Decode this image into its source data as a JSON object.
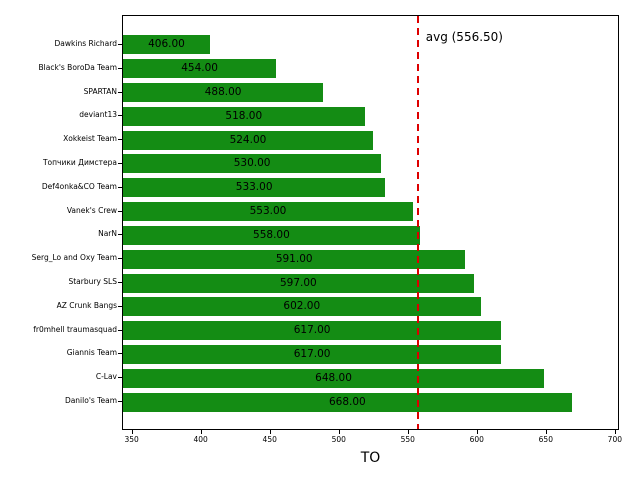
{
  "chart_data": {
    "type": "bar",
    "orientation": "horizontal",
    "title": "",
    "xlabel": "TO",
    "ylabel": "",
    "categories": [
      "Dawkins Richard",
      "Black's BoroDa Team",
      "SPARTAN",
      "deviant13",
      "Xokkeist Team",
      "Топчики Димстера",
      "Def4onka&CO Team",
      "Vanek's Crew",
      "NarN",
      "Serg_Lo and Oxy Team",
      "Starbury SLS",
      "AZ Crunk Bangs",
      "fr0mhell traumasquad",
      "Giannis Team",
      "C-Lav",
      "Danilo's Team"
    ],
    "values": [
      406,
      454,
      488,
      518,
      524,
      530,
      533,
      553,
      558,
      591,
      597,
      602,
      617,
      617,
      648,
      668
    ],
    "value_labels": [
      "406.00",
      "454.00",
      "488.00",
      "518.00",
      "524.00",
      "530.00",
      "533.00",
      "553.00",
      "558.00",
      "591.00",
      "597.00",
      "602.00",
      "617.00",
      "617.00",
      "648.00",
      "668.00"
    ],
    "xticks": [
      350,
      400,
      450,
      500,
      550,
      600,
      650,
      700
    ],
    "xlim": [
      343,
      703
    ],
    "avg": 556.5,
    "avg_label": "avg (556.50)",
    "bar_color": "#148c14",
    "avg_line_color": "#dd0000",
    "grid": false,
    "legend": null
  }
}
